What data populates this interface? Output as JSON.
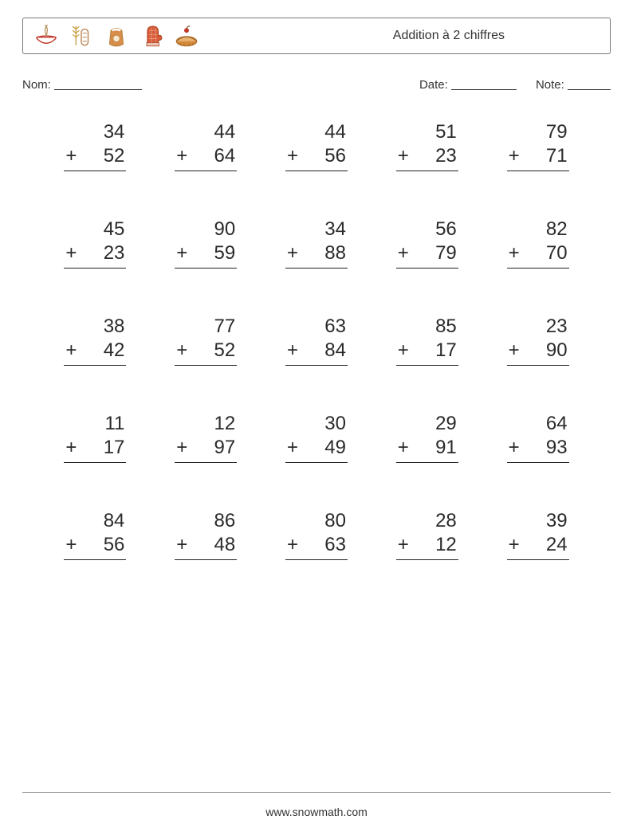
{
  "title": "Addition à 2 chiffres",
  "labels": {
    "name": "Nom:",
    "date": "Date:",
    "score": "Note:"
  },
  "icons": [
    "bowl-whisk",
    "wheat-bread",
    "flour-sack",
    "oven-mitt",
    "pie"
  ],
  "line_widths": {
    "name": 110,
    "date": 82,
    "score": 54
  },
  "footer": "www.snowmath.com",
  "operator": "+",
  "font_size_problem": 24,
  "colors": {
    "text": "#2a2a2a",
    "border": "#777",
    "underline": "#222",
    "background": "#ffffff"
  },
  "grid": {
    "rows": 5,
    "cols": 5
  },
  "problems": [
    {
      "a": 34,
      "b": 52
    },
    {
      "a": 44,
      "b": 64
    },
    {
      "a": 44,
      "b": 56
    },
    {
      "a": 51,
      "b": 23
    },
    {
      "a": 79,
      "b": 71
    },
    {
      "a": 45,
      "b": 23
    },
    {
      "a": 90,
      "b": 59
    },
    {
      "a": 34,
      "b": 88
    },
    {
      "a": 56,
      "b": 79
    },
    {
      "a": 82,
      "b": 70
    },
    {
      "a": 38,
      "b": 42
    },
    {
      "a": 77,
      "b": 52
    },
    {
      "a": 63,
      "b": 84
    },
    {
      "a": 85,
      "b": 17
    },
    {
      "a": 23,
      "b": 90
    },
    {
      "a": 11,
      "b": 17
    },
    {
      "a": 12,
      "b": 97
    },
    {
      "a": 30,
      "b": 49
    },
    {
      "a": 29,
      "b": 91
    },
    {
      "a": 64,
      "b": 93
    },
    {
      "a": 84,
      "b": 56
    },
    {
      "a": 86,
      "b": 48
    },
    {
      "a": 80,
      "b": 63
    },
    {
      "a": 28,
      "b": 12
    },
    {
      "a": 39,
      "b": 24
    }
  ]
}
